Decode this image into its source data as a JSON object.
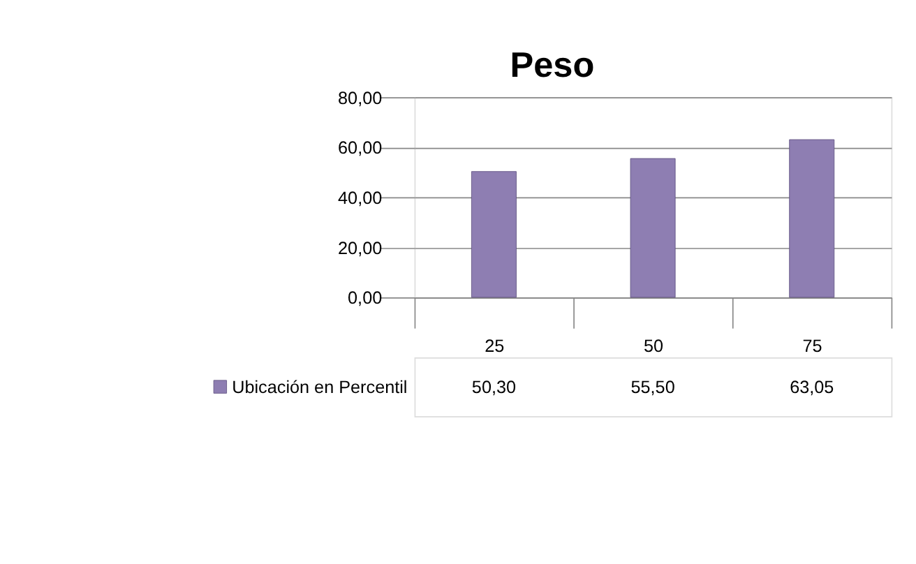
{
  "chart_data": {
    "type": "bar",
    "title": "Peso",
    "categories": [
      "25",
      "50",
      "75"
    ],
    "series": [
      {
        "name": "Ubicación en Percentil",
        "color": "#8e7eb2",
        "values": [
          50.3,
          55.5,
          63.05
        ],
        "value_labels": [
          "50,30",
          "55,50",
          "63,05"
        ]
      }
    ],
    "ylim": [
      0,
      80
    ],
    "yticks": [
      {
        "value": 0,
        "label": "0,00"
      },
      {
        "value": 20,
        "label": "20,00"
      },
      {
        "value": 40,
        "label": "40,00"
      },
      {
        "value": 60,
        "label": "60,00"
      },
      {
        "value": 80,
        "label": "80,00"
      }
    ],
    "grid": "y",
    "legend": "bottom left"
  }
}
